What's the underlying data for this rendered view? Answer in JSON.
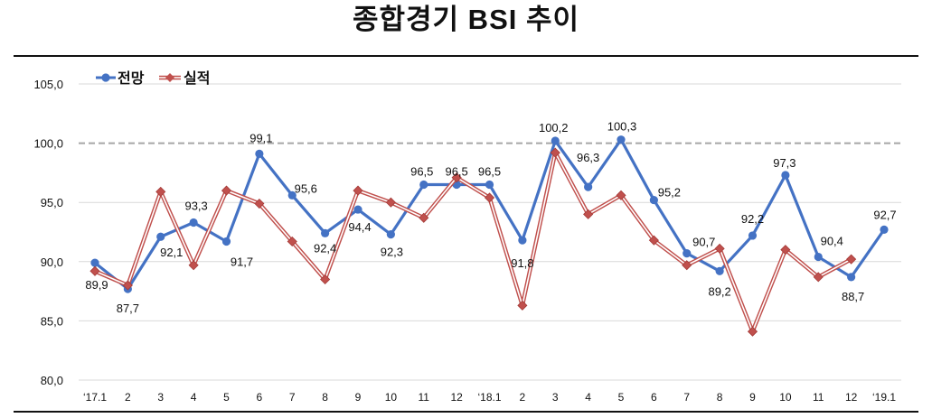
{
  "chart_data": {
    "type": "line",
    "title": "종합경기 BSI 추이",
    "categories": [
      "‘17.1",
      "2",
      "3",
      "4",
      "5",
      "6",
      "7",
      "8",
      "9",
      "10",
      "11",
      "12",
      "‘18.1",
      "2",
      "3",
      "4",
      "5",
      "6",
      "7",
      "8",
      "9",
      "10",
      "11",
      "12",
      "‘19.1"
    ],
    "series": [
      {
        "name": "전망",
        "color": "#4472C4",
        "marker": "circle",
        "values": [
          89.9,
          87.7,
          92.1,
          93.3,
          91.7,
          99.1,
          95.6,
          92.4,
          94.4,
          92.3,
          96.5,
          96.5,
          96.5,
          91.8,
          100.2,
          96.3,
          100.3,
          95.2,
          90.7,
          89.2,
          92.2,
          97.3,
          90.4,
          88.7,
          92.7
        ],
        "labels": [
          "89,9",
          "87,7",
          "92,1",
          "93,3",
          "91,7",
          "99,1",
          "95,6",
          "92,4",
          "94,4",
          "92,3",
          "96,5",
          "96,5",
          "96,5",
          "91,8",
          "100,2",
          "96,3",
          "100,3",
          "95,2",
          "90,7",
          "89,2",
          "92,2",
          "97,3",
          "90,4",
          "88,7",
          "92,7"
        ]
      },
      {
        "name": "실적",
        "color": "#C0504D",
        "marker": "diamond",
        "values": [
          89.2,
          88.0,
          95.9,
          89.7,
          96.0,
          94.9,
          91.7,
          88.5,
          96.0,
          95.0,
          93.7,
          97.1,
          95.4,
          86.3,
          99.2,
          94.0,
          95.6,
          91.8,
          89.7,
          91.1,
          84.1,
          91.0,
          88.7,
          90.2,
          null
        ]
      }
    ],
    "ylim": [
      80,
      105
    ],
    "ytick_values": [
      80,
      85,
      90,
      95,
      100,
      105
    ],
    "ytick_labels": [
      "80,0",
      "85,0",
      "90,0",
      "95,0",
      "100,0",
      "105,0"
    ],
    "reference_line": 100,
    "grid": true,
    "legend_position": "top-left"
  }
}
